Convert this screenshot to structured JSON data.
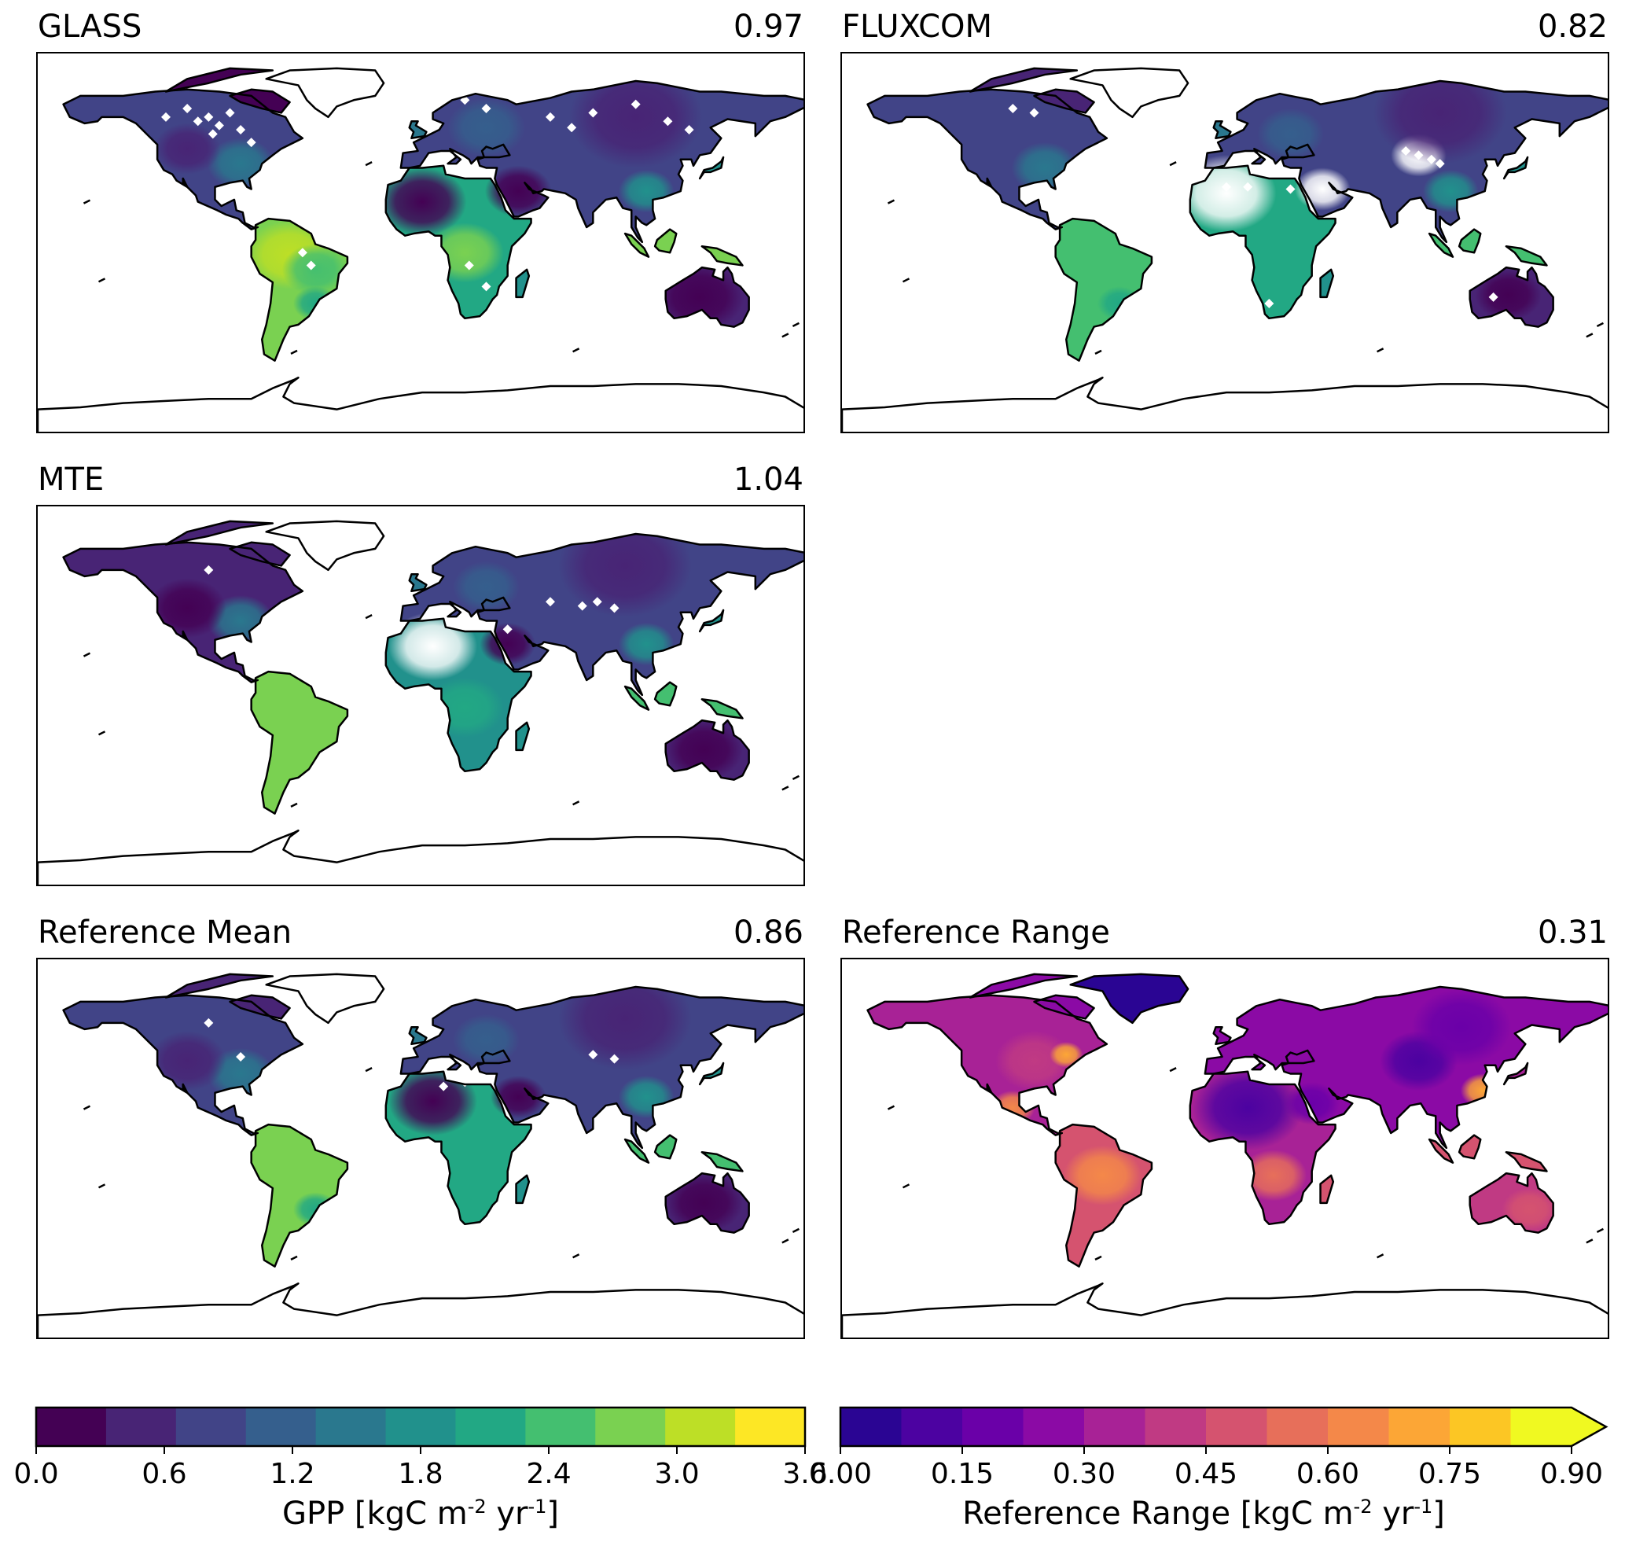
{
  "panels": [
    {
      "id": "glass",
      "title": "GLASS",
      "value": "0.97",
      "colormap": "viridis"
    },
    {
      "id": "fluxcom",
      "title": "FLUXCOM",
      "value": "0.82",
      "colormap": "viridis"
    },
    {
      "id": "mte",
      "title": "MTE",
      "value": "1.04",
      "colormap": "viridis"
    },
    {
      "id": "refmean",
      "title": "Reference Mean",
      "value": "0.86",
      "colormap": "viridis"
    },
    {
      "id": "refrange",
      "title": "Reference Range",
      "value": "0.31",
      "colormap": "plasma"
    }
  ],
  "colorbars": {
    "gpp": {
      "label_prefix": "GPP [kgC m",
      "label_exp1": "-2",
      "label_mid": " yr",
      "label_exp2": "-1",
      "label_suffix": "]",
      "ticks": [
        "0.0",
        "0.6",
        "1.2",
        "1.8",
        "2.4",
        "3.0",
        "3.6"
      ],
      "colors": [
        "#440154",
        "#482475",
        "#414487",
        "#355f8d",
        "#2a788e",
        "#21918c",
        "#22a884",
        "#44bf70",
        "#7ad151",
        "#bddf26",
        "#fde725"
      ]
    },
    "range": {
      "label_prefix": "Reference Range [kgC m",
      "label_exp1": "-2",
      "label_mid": " yr",
      "label_exp2": "-1",
      "label_suffix": "]",
      "ticks": [
        "0.00",
        "0.15",
        "0.30",
        "0.45",
        "0.60",
        "0.75",
        "0.90"
      ],
      "colors": [
        "#2a0593",
        "#4c02a1",
        "#6a00a8",
        "#8b0aa5",
        "#a82296",
        "#c03a83",
        "#d5536f",
        "#e76f5a",
        "#f48849",
        "#fca636",
        "#fcc624",
        "#f0f921"
      ],
      "extend": "max"
    }
  },
  "chart_data": {
    "type": "heatmap",
    "description_source": "global maps of GPP",
    "panels": [
      {
        "title": "GLASS",
        "value": 0.97
      },
      {
        "title": "FLUXCOM",
        "value": 0.82
      },
      {
        "title": "MTE",
        "value": 1.04
      },
      {
        "title": "Reference Mean",
        "value": 0.86
      },
      {
        "title": "Reference Range",
        "value": 0.31
      }
    ],
    "colorbar_gpp": {
      "range": [
        0.0,
        3.6
      ],
      "ticks": [
        0.0,
        0.6,
        1.2,
        1.8,
        2.4,
        3.0,
        3.6
      ]
    },
    "colorbar_range": {
      "range": [
        0.0,
        0.9
      ],
      "ticks": [
        0.0,
        0.15,
        0.3,
        0.45,
        0.6,
        0.75,
        0.9
      ],
      "extend": "max"
    }
  }
}
